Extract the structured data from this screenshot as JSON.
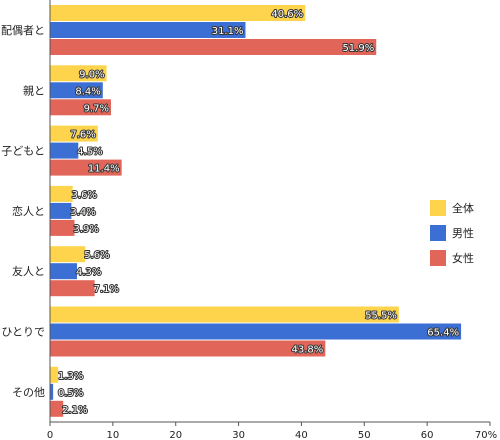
{
  "chart_data": {
    "type": "bar",
    "orientation": "horizontal",
    "categories": [
      "配偶者と",
      "親と",
      "子どもと",
      "恋人と",
      "友人と",
      "ひとりで",
      "その他"
    ],
    "series": [
      {
        "name": "全体",
        "color": "#fdd44c",
        "values": [
          40.6,
          9.0,
          7.6,
          3.6,
          5.6,
          55.5,
          1.3
        ],
        "value_labels": [
          "40.6%",
          "9.0%",
          "7.6%",
          "3.6%",
          "5.6%",
          "55.5%",
          "1.3%"
        ]
      },
      {
        "name": "男性",
        "color": "#3b6fd4",
        "values": [
          31.1,
          8.4,
          4.5,
          3.4,
          4.3,
          65.4,
          0.5
        ],
        "value_labels": [
          "31.1%",
          "8.4%",
          "4.5%",
          "3.4%",
          "4.3%",
          "65.4%",
          "0.5%"
        ]
      },
      {
        "name": "女性",
        "color": "#e2655a",
        "values": [
          51.9,
          9.7,
          11.4,
          3.9,
          7.1,
          43.8,
          2.1
        ],
        "value_labels": [
          "51.9%",
          "9.7%",
          "11.4%",
          "3.9%",
          "7.1%",
          "43.8%",
          "2.1%"
        ]
      }
    ],
    "xlim": [
      0,
      70
    ],
    "xticks": [
      "0",
      "10",
      "20",
      "30",
      "40",
      "50",
      "60",
      "70%"
    ],
    "grid": false,
    "legend_position": "right"
  }
}
